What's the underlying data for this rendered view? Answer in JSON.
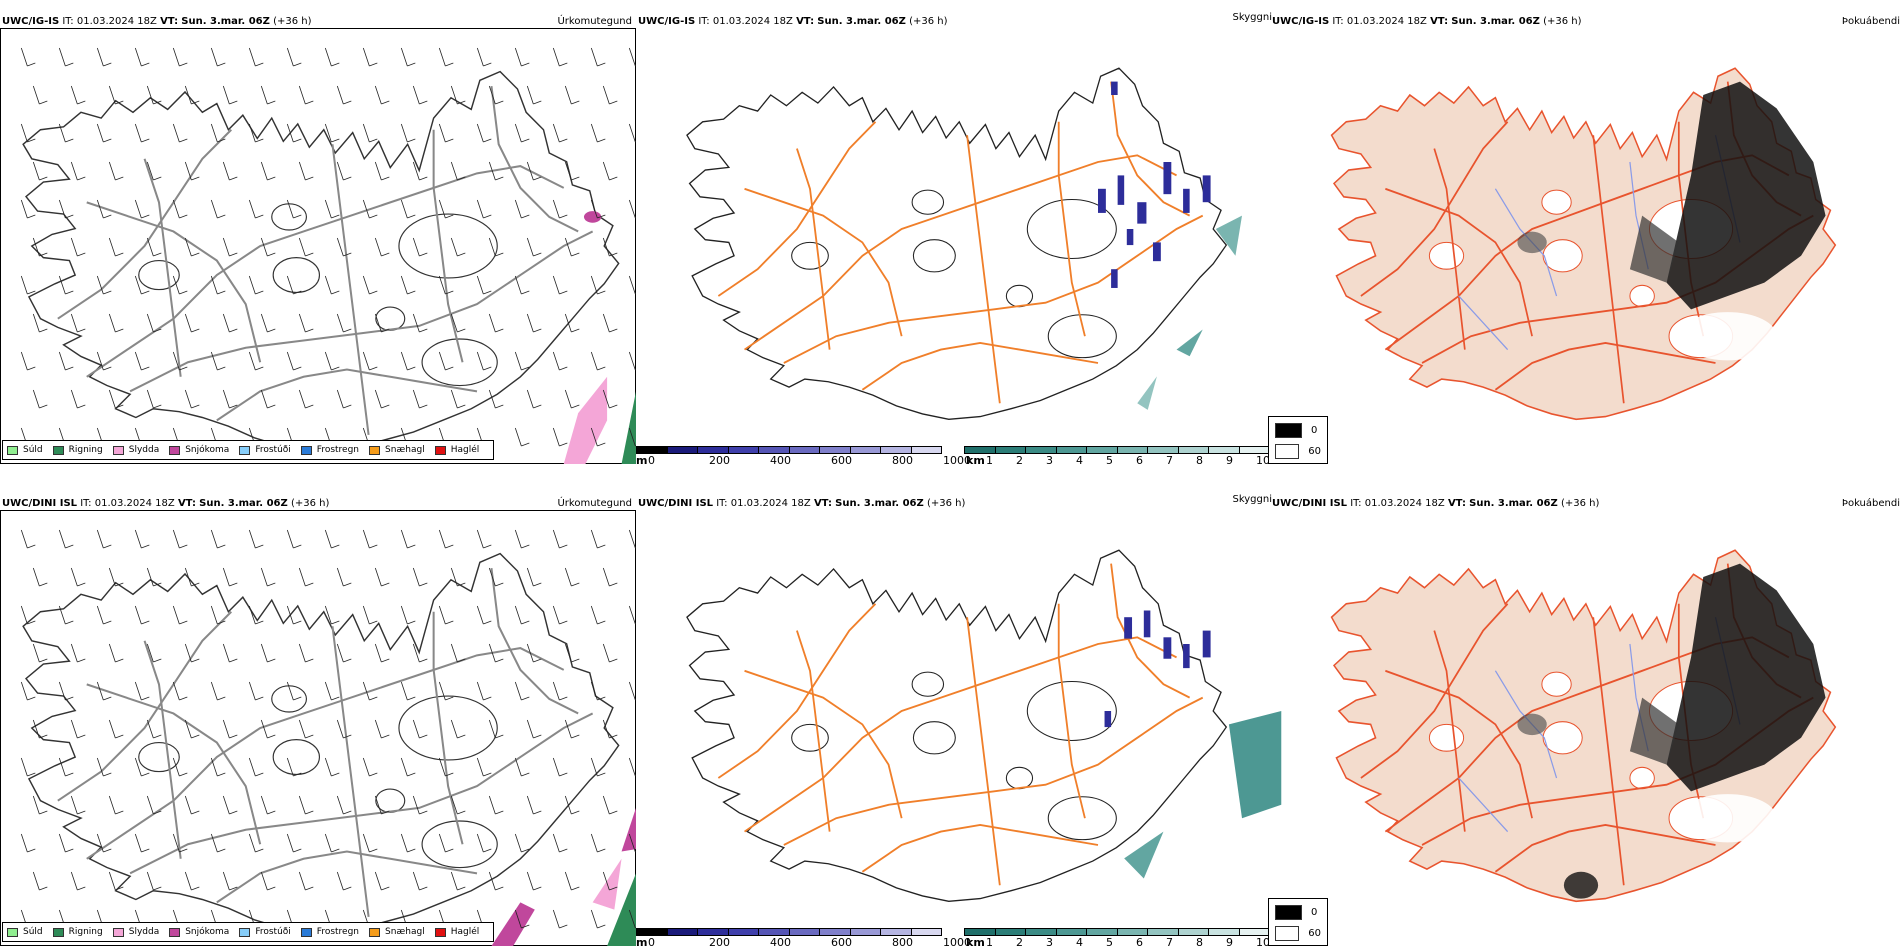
{
  "rows": [
    {
      "model": "UWC/IG-IS",
      "it_label": "IT:",
      "it_value": "01.03.2024 18Z",
      "vt_label": "VT:",
      "vt_value": "Sun. 3.mar. 06Z",
      "lead": "(+36 h)"
    },
    {
      "model": "UWC/DINI ISL",
      "it_label": "IT:",
      "it_value": "01.03.2024 18Z",
      "vt_label": "VT:",
      "vt_value": "Sun. 3.mar. 06Z",
      "lead": "(+36 h)"
    }
  ],
  "panel_titles": {
    "precip": "Úrkomutegund",
    "visibility": "Skyggni",
    "fog": "Þokuábendi"
  },
  "precip_legend": [
    {
      "label": "Súld",
      "color": "#90ee90"
    },
    {
      "label": "Rigning",
      "color": "#2e8b57"
    },
    {
      "label": "Slydda",
      "color": "#f4a6d7"
    },
    {
      "label": "Snjókoma",
      "color": "#c0479c"
    },
    {
      "label": "Frostúði",
      "color": "#87cefa"
    },
    {
      "label": "Frostregn",
      "color": "#2a7bd8"
    },
    {
      "label": "Snæhagl",
      "color": "#f59c1a"
    },
    {
      "label": "Haglél",
      "color": "#e01010"
    }
  ],
  "cloudbase_bar": {
    "unit": "m",
    "ticks": [
      "0",
      "200",
      "400",
      "600",
      "800",
      "1000"
    ],
    "colors": [
      "#000000",
      "#1a1a7a",
      "#2d2d9a",
      "#3f3fab",
      "#5555b5",
      "#6a6ac0",
      "#8080cb",
      "#9999d6",
      "#b5b5e2",
      "#d8d8f0"
    ]
  },
  "visibility_bar": {
    "unit": "km",
    "ticks": [
      "1",
      "2",
      "3",
      "4",
      "5",
      "6",
      "7",
      "8",
      "9",
      "10"
    ],
    "colors": [
      "#1f6f6a",
      "#2b7d77",
      "#3b8b85",
      "#4d9893",
      "#62a6a1",
      "#7ab5b0",
      "#93c4c0",
      "#aed3d0",
      "#c9e3e1",
      "#e6f2f1"
    ]
  },
  "fog_legend": [
    {
      "label": "0",
      "color": "#000000"
    },
    {
      "label": "60",
      "color": "#ffffff"
    }
  ],
  "colors": {
    "land_fog": "#f3dccd",
    "roads": "#f07f2a",
    "roads_fog": "#e8542e",
    "rivers": "#8a9be8",
    "rain": "#2e8b57",
    "sleet": "#f4a6d7",
    "snow": "#c0479c"
  }
}
